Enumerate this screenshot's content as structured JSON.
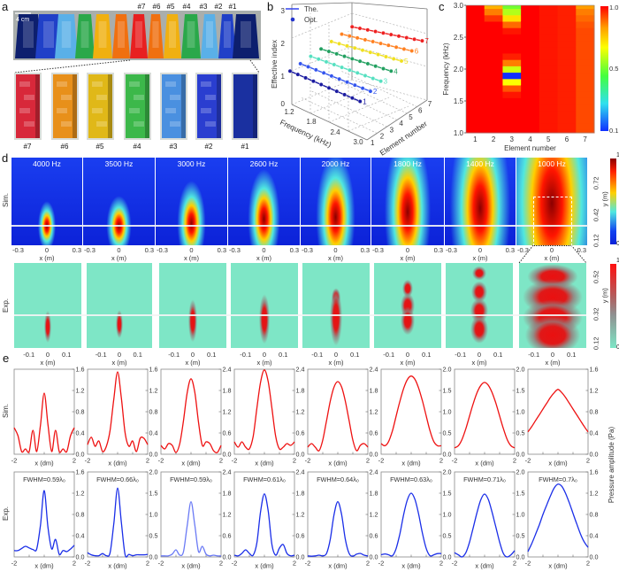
{
  "panel_labels": {
    "a": "a",
    "b": "b",
    "c": "c",
    "d": "d",
    "e": "e"
  },
  "panel_a": {
    "scale_bar": "4 cm",
    "top_labels": [
      "#7",
      "#6",
      "#5",
      "#4",
      "#3",
      "#2",
      "#1"
    ],
    "element_labels": [
      "#7",
      "#6",
      "#5",
      "#4",
      "#3",
      "#2",
      "#1"
    ],
    "element_colors": [
      "#d8283a",
      "#e8901a",
      "#e0b818",
      "#3cb84a",
      "#4a90e0",
      "#2a3ed0",
      "#1a30a0"
    ]
  },
  "row_labels": {
    "sim": "Sim.",
    "exp": "Exp."
  },
  "chart_data": [
    {
      "panel": "b",
      "type": "line",
      "projection": "3d",
      "xlabel": "Frequency (kHz)",
      "ylabel": "Effective index",
      "zlabel": "Element number",
      "x_ticks": [
        "1.2",
        "1.8",
        "2.4",
        "3.0"
      ],
      "y_ticks": [
        "0",
        "1",
        "2",
        "3"
      ],
      "z_ticks": [
        "1",
        "2",
        "3",
        "4",
        "5",
        "6",
        "7"
      ],
      "legend": [
        {
          "label": "The.",
          "marker": "line"
        },
        {
          "label": "Opt.",
          "marker": "dot"
        }
      ],
      "legend_position": "top-left",
      "frequencies": [
        1.2,
        1.4,
        1.6,
        1.8,
        2.0,
        2.2,
        2.4,
        2.6,
        2.8,
        3.0
      ],
      "series": [
        {
          "name": "1",
          "color": "#1a1aa0",
          "values": [
            1.0,
            1.0,
            1.0,
            1.0,
            1.0,
            1.0,
            1.0,
            1.0,
            1.0,
            1.0
          ]
        },
        {
          "name": "2",
          "color": "#3355ee",
          "values": [
            1.2,
            1.2,
            1.2,
            1.2,
            1.2,
            1.2,
            1.2,
            1.2,
            1.2,
            1.2
          ]
        },
        {
          "name": "3",
          "color": "#55e0c0",
          "values": [
            1.4,
            1.4,
            1.4,
            1.4,
            1.4,
            1.4,
            1.4,
            1.4,
            1.4,
            1.4
          ]
        },
        {
          "name": "4",
          "color": "#22a060",
          "values": [
            1.6,
            1.6,
            1.6,
            1.6,
            1.6,
            1.6,
            1.6,
            1.6,
            1.6,
            1.6
          ]
        },
        {
          "name": "5",
          "color": "#f0e020",
          "values": [
            1.8,
            1.8,
            1.8,
            1.8,
            1.8,
            1.8,
            1.8,
            1.8,
            1.8,
            1.8
          ]
        },
        {
          "name": "6",
          "color": "#ff8020",
          "values": [
            2.0,
            2.0,
            2.0,
            2.0,
            2.0,
            2.0,
            2.0,
            2.0,
            2.0,
            2.0
          ]
        },
        {
          "name": "7",
          "color": "#ee2020",
          "values": [
            2.2,
            2.2,
            2.2,
            2.2,
            2.2,
            2.2,
            2.2,
            2.2,
            2.2,
            2.2
          ]
        }
      ],
      "ylim": [
        0,
        3
      ]
    },
    {
      "panel": "c",
      "type": "heatmap",
      "xlabel": "Element number",
      "ylabel": "Frequency (kHz)",
      "x_ticks": [
        "1",
        "2",
        "3",
        "4",
        "5",
        "6",
        "7"
      ],
      "y_ticks": [
        "1.0",
        "1.5",
        "2.0",
        "2.5",
        "3.0"
      ],
      "ylim": [
        1.0,
        3.0
      ],
      "colorbar_ticks": [
        "1.0",
        "0.5",
        "0.1"
      ],
      "colorbar_range": [
        0.1,
        1.0
      ],
      "frequencies": [
        1.0,
        1.1,
        1.2,
        1.3,
        1.4,
        1.5,
        1.6,
        1.7,
        1.8,
        1.9,
        2.0,
        2.1,
        2.2,
        2.3,
        2.4,
        2.5,
        2.6,
        2.7,
        2.8,
        2.9,
        3.0
      ],
      "values_by_element": [
        [
          1,
          1,
          1,
          1,
          1,
          1,
          1,
          1,
          1,
          1,
          1,
          1,
          1,
          1,
          1,
          1,
          1,
          1,
          1,
          1,
          1
        ],
        [
          1,
          1,
          1,
          1,
          1,
          1,
          1,
          1,
          1,
          1,
          1,
          1,
          1,
          1,
          1,
          1,
          1,
          1,
          0.95,
          0.88,
          0.82
        ],
        [
          1,
          1,
          1,
          1,
          1,
          1,
          0.98,
          0.92,
          0.7,
          0.1,
          0.65,
          0.88,
          0.97,
          1,
          1,
          1,
          0.98,
          0.9,
          0.75,
          0.62,
          0.55
        ],
        [
          1,
          1,
          1,
          1,
          1,
          1,
          1,
          1,
          1,
          1,
          1,
          1,
          1,
          1,
          1,
          1,
          1,
          1,
          1,
          1,
          1
        ],
        [
          0.98,
          0.98,
          0.98,
          0.98,
          0.98,
          0.98,
          0.98,
          0.98,
          0.98,
          0.98,
          0.98,
          0.98,
          0.98,
          0.98,
          0.98,
          0.98,
          0.98,
          0.98,
          0.98,
          0.98,
          0.98
        ],
        [
          0.97,
          0.97,
          0.97,
          0.97,
          0.97,
          0.97,
          0.97,
          0.97,
          0.97,
          0.97,
          0.97,
          0.97,
          0.97,
          0.97,
          0.97,
          0.97,
          0.97,
          0.97,
          0.97,
          0.97,
          0.97
        ],
        [
          0.93,
          0.93,
          0.93,
          0.93,
          0.93,
          0.93,
          0.93,
          0.93,
          0.93,
          0.93,
          0.93,
          0.93,
          0.93,
          0.93,
          0.93,
          0.93,
          0.93,
          0.92,
          0.9,
          0.88,
          0.85
        ]
      ]
    },
    {
      "panel": "d",
      "type": "heatmap",
      "frequencies": [
        "4000 Hz",
        "3500 Hz",
        "3000 Hz",
        "2600 Hz",
        "2000 Hz",
        "1800 Hz",
        "1400 Hz",
        "1000 Hz"
      ],
      "sim": {
        "x_ticks": [
          "-0.3",
          "0",
          "0.3"
        ],
        "xlabel": "x (m)",
        "y_ticks": [
          "0.72",
          "0.42",
          "0.12"
        ],
        "ylabel": "y (m)",
        "colorbar_ticks": [
          "1",
          "0"
        ]
      },
      "exp": {
        "x_ticks": [
          "-0.1",
          "0",
          "0.1"
        ],
        "xlabel": "x (m)",
        "y_ticks": [
          "0.52",
          "0.32",
          "0.12"
        ],
        "ylabel": "y (m)",
        "colorbar_ticks": [
          "1",
          "0"
        ]
      }
    },
    {
      "panel": "e",
      "type": "line",
      "xlabel": "x (dm)",
      "x_ticks": [
        "-2",
        "2"
      ],
      "xlim": [
        -2,
        2
      ],
      "ylabel": "Pressure amplitude (Pa)",
      "x": [
        -2,
        -1.75,
        -1.5,
        -1.25,
        -1,
        -0.75,
        -0.5,
        -0.25,
        0,
        0.25,
        0.5,
        0.75,
        1,
        1.25,
        1.5,
        1.75,
        2
      ],
      "sim": {
        "color": "#ee1111",
        "ymax": [
          1.6,
          1.6,
          2.4,
          2.4,
          2.4,
          2.0,
          2.0,
          1.6
        ],
        "series": [
          [
            0.5,
            0.35,
            0.05,
            0.1,
            0.05,
            0.45,
            0.05,
            0.55,
            1.15,
            0.55,
            0.05,
            0.45,
            0.05,
            0.1,
            0.05,
            0.35,
            0.5
          ],
          [
            0.18,
            0.32,
            0.15,
            0.25,
            0.05,
            0.15,
            0.45,
            1.05,
            1.55,
            1.05,
            0.4,
            0.15,
            0.25,
            0.05,
            0.3,
            0.3,
            0.18
          ],
          [
            0.25,
            0.15,
            0.3,
            0.25,
            0.05,
            0.3,
            0.95,
            1.75,
            2.13,
            1.75,
            0.9,
            0.25,
            0.35,
            0.3,
            0.1,
            0.05,
            0.25
          ],
          [
            0.35,
            0.2,
            0.35,
            0.2,
            0.15,
            0.5,
            1.3,
            2.05,
            2.38,
            2.05,
            1.3,
            0.5,
            0.15,
            0.2,
            0.3,
            0.25,
            0.35
          ],
          [
            0.2,
            0.3,
            0.2,
            0.1,
            0.4,
            0.95,
            1.5,
            1.9,
            2.05,
            1.9,
            1.5,
            0.95,
            0.4,
            0.1,
            0.25,
            0.3,
            0.2
          ],
          [
            0.25,
            0.2,
            0.3,
            0.55,
            0.9,
            1.25,
            1.55,
            1.76,
            1.84,
            1.76,
            1.55,
            1.25,
            0.9,
            0.55,
            0.3,
            0.2,
            0.2
          ],
          [
            0.15,
            0.2,
            0.35,
            0.6,
            0.9,
            1.2,
            1.45,
            1.62,
            1.69,
            1.62,
            1.45,
            1.2,
            0.9,
            0.6,
            0.35,
            0.2,
            0.15
          ],
          [
            0.42,
            0.52,
            0.63,
            0.74,
            0.85,
            0.96,
            1.07,
            1.16,
            1.22,
            1.16,
            1.07,
            0.96,
            0.85,
            0.74,
            0.63,
            0.52,
            0.42
          ]
        ]
      },
      "exp": {
        "color": "#1a2ee8",
        "ymax": [
          1.6,
          2.0,
          2.4,
          2.4,
          2.4,
          2.0,
          2.0,
          1.6
        ],
        "fwhm": [
          "FWHM=0.59λ₀",
          "FWHM=0.66λ₀",
          "FWHM=0.59λ₀",
          "FWHM=0.61λ₀",
          "FWHM=0.64λ₀",
          "FWHM=0.63λ₀",
          "FWHM=0.71λ₀",
          "FWHM=0.7λ₀"
        ],
        "series": [
          [
            0.12,
            0.12,
            0.16,
            0.2,
            0.17,
            0.14,
            0.15,
            0.6,
            1.25,
            0.55,
            0.15,
            0.33,
            0.05,
            0.12,
            0.1,
            0.15,
            0.22
          ],
          [
            0.1,
            0.05,
            0.03,
            0.03,
            0.08,
            0.03,
            0.1,
            0.8,
            1.62,
            0.8,
            0.05,
            0.06,
            0.03,
            0.05,
            0.05,
            0.05,
            0.06
          ],
          [
            0.03,
            0.03,
            0.03,
            0.08,
            0.2,
            0.05,
            0.15,
            0.9,
            1.56,
            0.9,
            0.15,
            0.3,
            0.08,
            0.03,
            0.05,
            0.03,
            0.03
          ],
          [
            0.05,
            0.03,
            0.1,
            0.2,
            0.1,
            0.05,
            0.4,
            1.3,
            1.78,
            1.3,
            0.35,
            0.05,
            0.25,
            0.35,
            0.1,
            0.03,
            0.05
          ],
          [
            0.03,
            0.02,
            0.03,
            0.05,
            0.03,
            0.1,
            0.5,
            1.2,
            1.56,
            1.2,
            0.5,
            0.1,
            0.02,
            0.08,
            0.1,
            0.05,
            0.03
          ],
          [
            0.05,
            0.07,
            0.05,
            0.03,
            0.2,
            0.55,
            1.0,
            1.35,
            1.5,
            1.35,
            1.0,
            0.55,
            0.2,
            0.03,
            0.05,
            0.08,
            0.08
          ],
          [
            0.1,
            0.05,
            0.0,
            0.1,
            0.35,
            0.7,
            1.05,
            1.35,
            1.48,
            1.35,
            1.05,
            0.7,
            0.35,
            0.08,
            0.0,
            0.05,
            0.15
          ],
          [
            0.1,
            0.25,
            0.42,
            0.6,
            0.8,
            0.98,
            1.15,
            1.3,
            1.37,
            1.33,
            1.2,
            1.02,
            0.82,
            0.62,
            0.43,
            0.28,
            0.18
          ]
        ]
      }
    }
  ]
}
